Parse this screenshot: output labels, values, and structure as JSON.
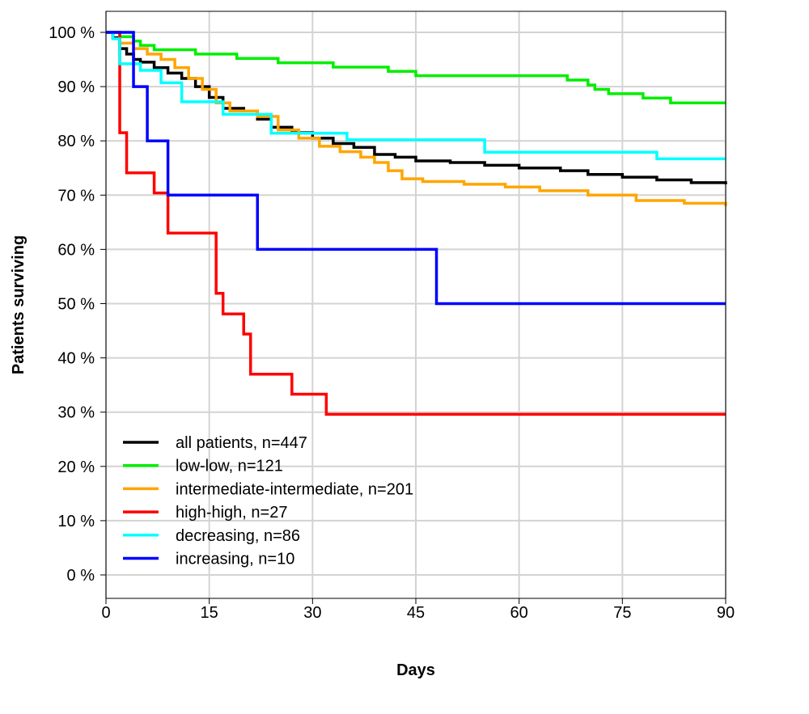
{
  "chart_data": {
    "type": "line",
    "step": true,
    "xlabel": "Days",
    "ylabel": "Patients surviving",
    "xlim": [
      0,
      90
    ],
    "ylim": [
      0,
      100
    ],
    "x_ticks": [
      0,
      15,
      30,
      45,
      60,
      75,
      90
    ],
    "x_tick_labels": [
      "0",
      "15",
      "30",
      "45",
      "60",
      "75",
      "90"
    ],
    "y_ticks": [
      0,
      10,
      20,
      30,
      40,
      50,
      60,
      70,
      80,
      90,
      100
    ],
    "y_tick_labels": [
      "0 %",
      "10 %",
      "20 %",
      "30 %",
      "40 %",
      "50 %",
      "60 %",
      "70 %",
      "80 %",
      "90 %",
      "100 %"
    ],
    "grid": true,
    "legend_position": "bottom-left",
    "series": [
      {
        "name": "all patients, n=447",
        "color": "#000000",
        "x": [
          0,
          1,
          2,
          3,
          4,
          5,
          7,
          9,
          11,
          13,
          15,
          17,
          20,
          22,
          24,
          27,
          30,
          33,
          36,
          39,
          42,
          45,
          50,
          55,
          60,
          66,
          70,
          75,
          80,
          85,
          90
        ],
        "y": [
          100,
          99,
          97,
          96,
          95,
          94.5,
          93.5,
          92.5,
          91.5,
          90,
          88,
          86,
          85.5,
          84,
          82.5,
          81.5,
          80.5,
          79.5,
          78.8,
          77.5,
          77,
          76.3,
          76,
          75.5,
          75,
          74.5,
          73.8,
          73.3,
          72.8,
          72.3,
          72
        ]
      },
      {
        "name": "low-low, n=121",
        "color": "#00ee00",
        "x": [
          0,
          2,
          4,
          5,
          7,
          13,
          19,
          25,
          33,
          41,
          45,
          67,
          70,
          71,
          73,
          78,
          82,
          90
        ],
        "y": [
          100,
          99.2,
          98.4,
          97.6,
          96.8,
          96,
          95.2,
          94.4,
          93.6,
          92.8,
          92,
          91.2,
          90.3,
          89.5,
          88.7,
          87.9,
          87,
          87
        ]
      },
      {
        "name": "intermediate-intermediate, n=201",
        "color": "#ffa500",
        "x": [
          0,
          2,
          4,
          6,
          8,
          10,
          12,
          14,
          16,
          18,
          22,
          25,
          28,
          31,
          34,
          37,
          39,
          41,
          43,
          46,
          52,
          58,
          63,
          70,
          77,
          84,
          90
        ],
        "y": [
          100,
          98,
          97,
          96,
          95,
          93.5,
          91.5,
          89.5,
          87,
          85.5,
          84.5,
          82,
          80.5,
          79,
          78,
          77,
          76,
          74.5,
          73,
          72.5,
          72,
          71.5,
          70.8,
          70,
          69,
          68.5,
          68
        ]
      },
      {
        "name": "high-high, n=27",
        "color": "#ff0000",
        "x": [
          0,
          2,
          3,
          7,
          9,
          16,
          17,
          20,
          21,
          27,
          32,
          90
        ],
        "y": [
          100,
          81.5,
          74.1,
          70.4,
          63,
          51.9,
          48.1,
          44.4,
          37,
          33.3,
          29.6,
          29.6
        ]
      },
      {
        "name": "decreasing, n=86",
        "color": "#00ffff",
        "x": [
          0,
          1,
          2,
          5,
          8,
          11,
          17,
          24,
          35,
          55,
          80,
          90
        ],
        "y": [
          100,
          98.8,
          94.2,
          93,
          90.7,
          87.2,
          84.9,
          81.4,
          80.2,
          77.9,
          76.7,
          76.7
        ]
      },
      {
        "name": "increasing, n=10",
        "color": "#0000ff",
        "x": [
          0,
          4,
          6,
          9,
          22,
          48,
          90
        ],
        "y": [
          100,
          90,
          80,
          70,
          60,
          50,
          50
        ]
      }
    ]
  }
}
